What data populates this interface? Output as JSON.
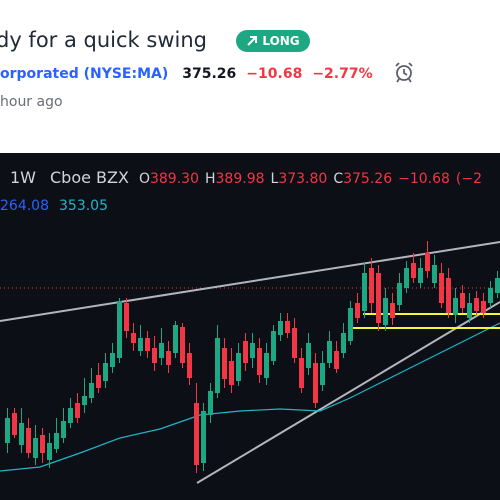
{
  "idea": {
    "title": "dy for a quick swing",
    "badge": "LONG",
    "ticker_name": "orporated (NYSE:MA)",
    "price": "375.26",
    "change": "−10.68",
    "change_pct": "−2.77%",
    "time_ago": "hour ago"
  },
  "chart_header": {
    "interval": "1W",
    "source": "Cboe BZX",
    "o_label": "O",
    "o_value": "389.30",
    "h_label": "H",
    "h_value": "389.98",
    "l_label": "L",
    "l_value": "373.80",
    "c_label": "C",
    "c_value": "375.26",
    "change": "−10.68",
    "change_pct_partial": "(−2",
    "ma1": "264.08",
    "ma2": "353.05"
  },
  "colors": {
    "up": "#1ea783",
    "down": "#f23645",
    "accent": "#2962ff",
    "ma2": "#22b5c9",
    "support": "#f5f53a",
    "trendline": "#b2b5be"
  },
  "icons": {
    "badge_arrow": "arrow-up-right-icon",
    "alarm": "alarm-clock-icon"
  },
  "candles": [
    [
      0,
      0,
      0,
      0
    ],
    [
      0,
      0,
      0,
      0
    ]
  ]
}
